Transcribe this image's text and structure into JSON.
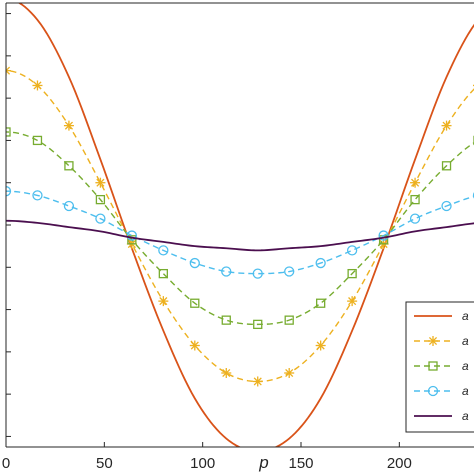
{
  "chart_data": {
    "type": "line",
    "xlabel": "p",
    "ylabel": "",
    "xlim": [
      0,
      240
    ],
    "ylim": [
      -1.05,
      1.05
    ],
    "x_ticks": [
      0,
      50,
      100,
      150,
      200
    ],
    "x_tick_labels": [
      "0",
      "50",
      "100",
      "150",
      "200"
    ],
    "grid": false,
    "legend": {
      "position": "bottom-right",
      "entries": [
        "a",
        "a",
        "a",
        "a",
        "a"
      ]
    },
    "x": [
      0,
      16,
      32,
      48,
      64,
      80,
      96,
      112,
      128,
      144,
      160,
      176,
      192,
      208,
      224,
      240
    ],
    "series": [
      {
        "color": "#D95319",
        "line": "solid",
        "marker": "none",
        "values": [
          1.07,
          0.97,
          0.7,
          0.31,
          -0.11,
          -0.5,
          -0.82,
          -1.01,
          -1.07,
          -1.01,
          -0.82,
          -0.5,
          -0.11,
          0.31,
          0.7,
          0.97
        ]
      },
      {
        "color": "#EDB120",
        "line": "dashed",
        "marker": "asterisk",
        "values": [
          0.73,
          0.66,
          0.47,
          0.2,
          -0.09,
          -0.36,
          -0.57,
          -0.7,
          -0.74,
          -0.7,
          -0.57,
          -0.36,
          -0.09,
          0.2,
          0.47,
          0.66
        ]
      },
      {
        "color": "#77AC30",
        "line": "dashed",
        "marker": "square",
        "values": [
          0.44,
          0.4,
          0.28,
          0.12,
          -0.07,
          -0.23,
          -0.37,
          -0.45,
          -0.47,
          -0.45,
          -0.37,
          -0.23,
          -0.07,
          0.12,
          0.28,
          0.4
        ]
      },
      {
        "color": "#4DBEEE",
        "line": "dashed",
        "marker": "circle",
        "values": [
          0.16,
          0.14,
          0.09,
          0.03,
          -0.05,
          -0.12,
          -0.18,
          -0.22,
          -0.23,
          -0.22,
          -0.18,
          -0.12,
          -0.05,
          0.03,
          0.09,
          0.14
        ]
      },
      {
        "color": "#4B0F4F",
        "line": "solid",
        "marker": "none",
        "values": [
          0.02,
          0.01,
          -0.01,
          -0.03,
          -0.06,
          -0.08,
          -0.1,
          -0.11,
          -0.12,
          -0.11,
          -0.1,
          -0.08,
          -0.06,
          -0.03,
          -0.01,
          0.01
        ]
      }
    ]
  }
}
